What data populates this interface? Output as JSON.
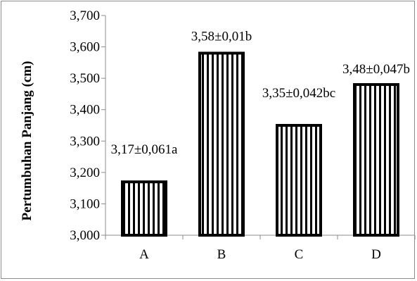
{
  "chart_data": {
    "type": "bar",
    "title": "",
    "xlabel": "",
    "ylabel": "Pertumbuhan Panjang (cm)",
    "categories": [
      "A",
      "B",
      "C",
      "D"
    ],
    "values": [
      3.17,
      3.58,
      3.35,
      3.48
    ],
    "data_labels": [
      "3,17±0,061a",
      "3,58±0,01b",
      "3,35±0,042bc",
      "3,48±0,047b"
    ],
    "ylim": [
      3.0,
      3.7
    ],
    "yticks": [
      3.0,
      3.1,
      3.2,
      3.3,
      3.4,
      3.5,
      3.6,
      3.7
    ],
    "ytick_labels": [
      "3,000",
      "3,100",
      "3,200",
      "3,300",
      "3,400",
      "3,500",
      "3,600",
      "3,700"
    ],
    "grid": false,
    "legend": "none",
    "bar_fill": "vertical-stripes",
    "colors": {
      "bar_stroke": "#000000",
      "stripe_light": "#ffffff",
      "stripe_dark": "#000000",
      "axis": "#8c8c8c"
    }
  }
}
